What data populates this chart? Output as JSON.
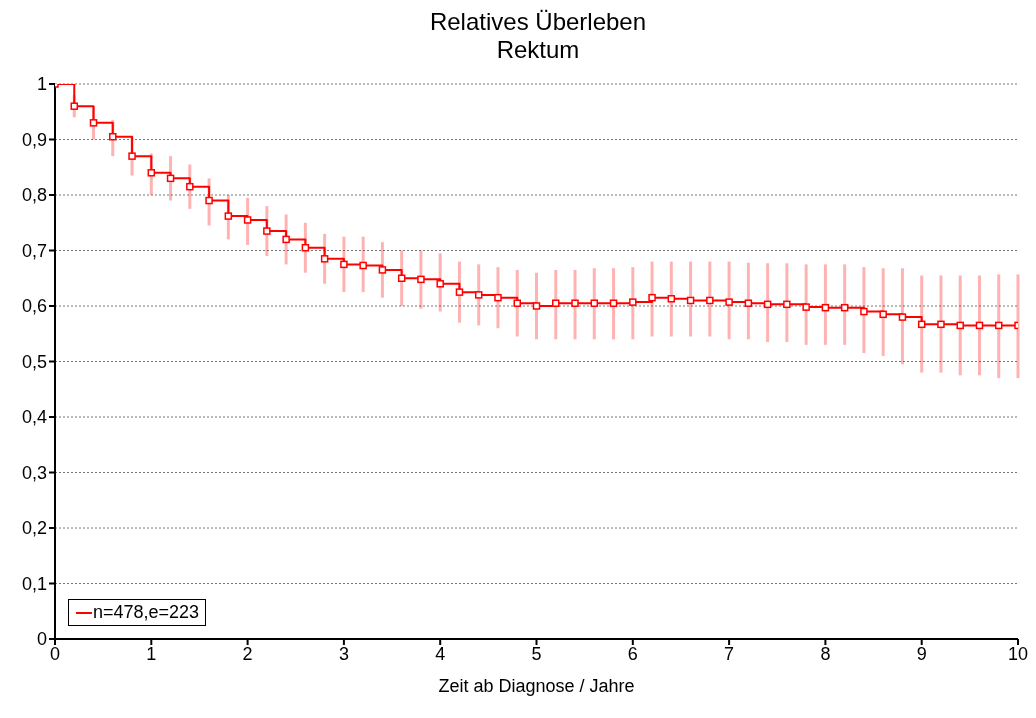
{
  "chart_data": {
    "type": "step",
    "title": "Relatives Überleben",
    "subtitle": "Rektum",
    "xlabel": "Zeit ab Diagnose / Jahre",
    "x": [
      0,
      0.2,
      0.4,
      0.6,
      0.8,
      1,
      1.2,
      1.4,
      1.6,
      1.8,
      2,
      2.2,
      2.4,
      2.6,
      2.8,
      3,
      3.2,
      3.4,
      3.6,
      3.8,
      4,
      4.2,
      4.4,
      4.6,
      4.8,
      5,
      5.2,
      5.4,
      5.6,
      5.8,
      6,
      6.2,
      6.4,
      6.6,
      6.8,
      7,
      7.2,
      7.4,
      7.6,
      7.8,
      8,
      8.2,
      8.4,
      8.6,
      8.8,
      9,
      9.2,
      9.4,
      9.6,
      9.8,
      10
    ],
    "series": [
      {
        "name": "n=478,e=223",
        "color": "#ff0000",
        "values": [
          1,
          0.96,
          0.93,
          0.905,
          0.87,
          0.84,
          0.83,
          0.815,
          0.79,
          0.762,
          0.755,
          0.735,
          0.72,
          0.705,
          0.685,
          0.675,
          0.673,
          0.665,
          0.65,
          0.648,
          0.64,
          0.625,
          0.62,
          0.615,
          0.605,
          0.6,
          0.605,
          0.605,
          0.605,
          0.605,
          0.607,
          0.615,
          0.613,
          0.61,
          0.61,
          0.607,
          0.605,
          0.603,
          0.603,
          0.598,
          0.597,
          0.597,
          0.59,
          0.585,
          0.58,
          0.567,
          0.567,
          0.565,
          0.565,
          0.565,
          0.565
        ],
        "errors": [
          null,
          [
            0.94,
            0.98
          ],
          [
            0.9,
            0.96
          ],
          [
            0.87,
            0.935
          ],
          [
            0.835,
            0.905
          ],
          [
            0.8,
            0.875
          ],
          [
            0.79,
            0.87
          ],
          [
            0.775,
            0.855
          ],
          [
            0.745,
            0.83
          ],
          [
            0.72,
            0.8
          ],
          [
            0.71,
            0.795
          ],
          [
            0.69,
            0.78
          ],
          [
            0.675,
            0.765
          ],
          [
            0.66,
            0.75
          ],
          [
            0.64,
            0.73
          ],
          [
            0.625,
            0.725
          ],
          [
            0.625,
            0.725
          ],
          [
            0.615,
            0.715
          ],
          [
            0.6,
            0.7
          ],
          [
            0.595,
            0.7
          ],
          [
            0.59,
            0.695
          ],
          [
            0.57,
            0.68
          ],
          [
            0.565,
            0.675
          ],
          [
            0.56,
            0.67
          ],
          [
            0.545,
            0.665
          ],
          [
            0.54,
            0.66
          ],
          [
            0.54,
            0.665
          ],
          [
            0.54,
            0.665
          ],
          [
            0.54,
            0.668
          ],
          [
            0.54,
            0.668
          ],
          [
            0.54,
            0.67
          ],
          [
            0.545,
            0.68
          ],
          [
            0.545,
            0.68
          ],
          [
            0.545,
            0.68
          ],
          [
            0.545,
            0.68
          ],
          [
            0.54,
            0.68
          ],
          [
            0.54,
            0.678
          ],
          [
            0.535,
            0.677
          ],
          [
            0.535,
            0.677
          ],
          [
            0.53,
            0.675
          ],
          [
            0.53,
            0.675
          ],
          [
            0.53,
            0.675
          ],
          [
            0.515,
            0.67
          ],
          [
            0.51,
            0.668
          ],
          [
            0.495,
            0.668
          ],
          [
            0.48,
            0.655
          ],
          [
            0.48,
            0.655
          ],
          [
            0.475,
            0.655
          ],
          [
            0.475,
            0.655
          ],
          [
            0.47,
            0.657
          ],
          [
            0.47,
            0.657
          ]
        ]
      }
    ],
    "xlim": [
      0,
      10
    ],
    "xticks": [
      0,
      1,
      2,
      3,
      4,
      5,
      6,
      7,
      8,
      9,
      10
    ],
    "ylim": [
      0,
      1
    ],
    "yticks": [
      0,
      {
        "value": 0.1,
        "label": "0,1"
      },
      {
        "value": 0.2,
        "label": "0,2"
      },
      {
        "value": 0.3,
        "label": "0,3"
      },
      {
        "value": 0.4,
        "label": "0,4"
      },
      {
        "value": 0.5,
        "label": "0,5"
      },
      {
        "value": 0.6,
        "label": "0,6"
      },
      {
        "value": 0.7,
        "label": "0,7"
      },
      {
        "value": 0.8,
        "label": "0,8"
      },
      {
        "value": 0.9,
        "label": "0,9"
      },
      1
    ],
    "grid": "y",
    "legend": "bottom left",
    "marker": "square",
    "line_style": "solid"
  }
}
